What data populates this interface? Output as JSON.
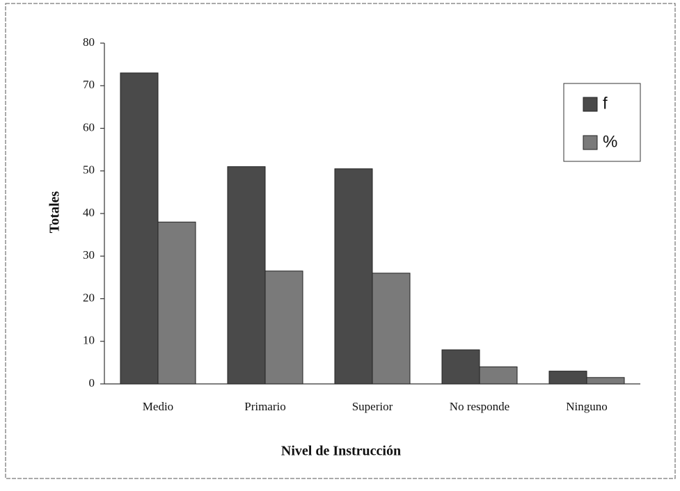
{
  "chart_data": {
    "type": "bar",
    "x_label": "Nivel de Instrucción",
    "y_label": "Totales",
    "categories": [
      "Medio",
      "Primario",
      "Superior",
      "No responde",
      "Ninguno"
    ],
    "series": [
      {
        "name": "f",
        "color": "#4a4a4a",
        "values": [
          73,
          51,
          50.5,
          8,
          3
        ]
      },
      {
        "name": "%",
        "color": "#7a7a7a",
        "values": [
          38,
          26.5,
          26,
          4,
          1.5
        ]
      }
    ],
    "ylim": [
      0,
      80
    ],
    "yticks": [
      0,
      10,
      20,
      30,
      40,
      50,
      60,
      70,
      80
    ],
    "grid": false,
    "legend": "upper right"
  }
}
